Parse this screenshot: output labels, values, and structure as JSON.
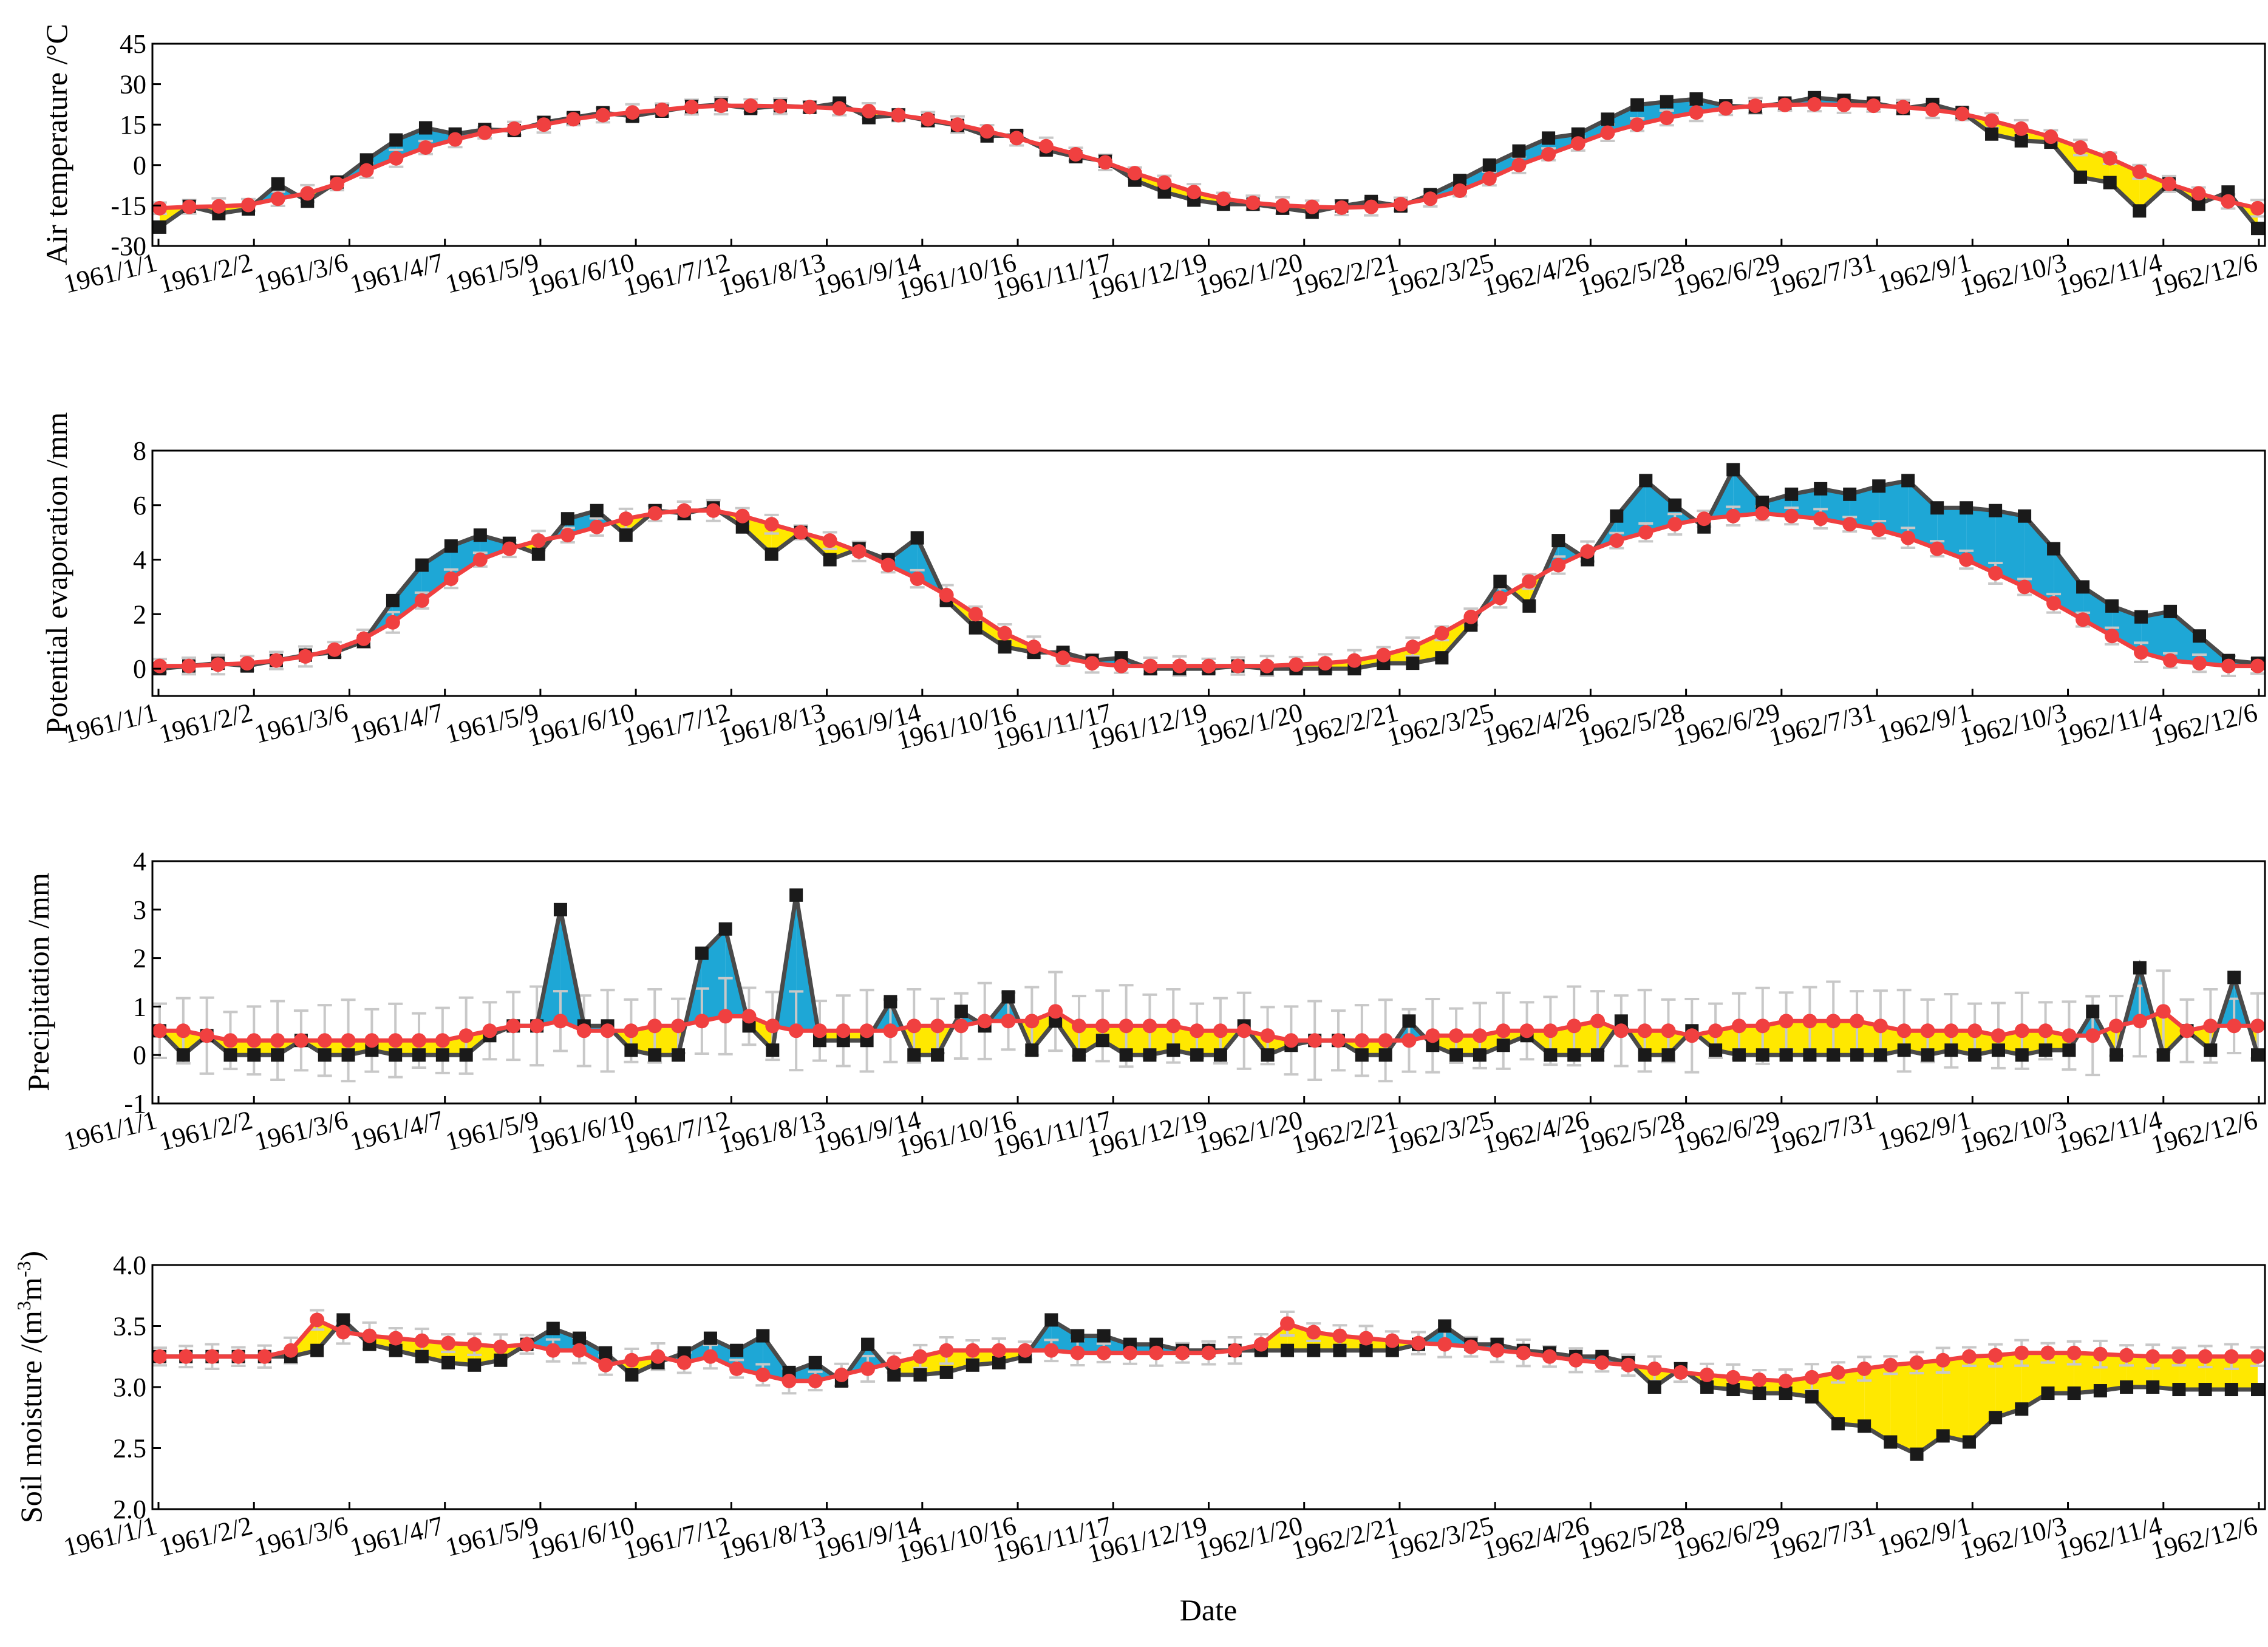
{
  "chart_data": [
    {
      "type": "line",
      "ylabel": "Air temperature /°C",
      "ylim": [
        -30,
        45
      ],
      "yticks": [
        -30,
        -15,
        0,
        15,
        30,
        45
      ],
      "date_labels": [
        "1961/1/1",
        "1961/2/2",
        "1961/3/6",
        "1961/4/7",
        "1961/5/9",
        "1961/6/10",
        "1961/7/12",
        "1961/8/13",
        "1961/9/14",
        "1961/10/16",
        "1961/11/17",
        "1961/12/19",
        "1962/1/20",
        "1962/2/21",
        "1962/3/25",
        "1962/4/26",
        "1962/5/28",
        "1962/6/29",
        "1962/7/31",
        "1962/9/1",
        "1962/10/3",
        "1962/11/4",
        "1962/12/6"
      ],
      "series": [
        {
          "values": [
            -23.0,
            -15.3,
            -18.0,
            -16.3,
            -7.0,
            -13.4,
            -6.3,
            1.9,
            9.3,
            13.8,
            11.5,
            13.2,
            12.8,
            15.8,
            17.6,
            19.4,
            18.1,
            20.0,
            21.7,
            22.4,
            21.0,
            22.0,
            21.4,
            23.0,
            17.6,
            18.6,
            16.5,
            14.7,
            10.8,
            11.0,
            5.6,
            3.1,
            1.4,
            -5.6,
            -10.0,
            -13.0,
            -14.5,
            -14.5,
            -16.0,
            -17.5,
            -15.2,
            -13.5,
            -15.2,
            -11.0,
            -5.7,
            0.0,
            5.2,
            10.0,
            11.5,
            17.0,
            22.3,
            23.5,
            24.5,
            22.0,
            21.5,
            23.0,
            25.0,
            24.0,
            23.0,
            21.0,
            22.5,
            19.5,
            11.5,
            9.0,
            8.5,
            -4.5,
            -6.5,
            -17.0,
            -7.0,
            -14.5,
            -10.0,
            -23.5
          ]
        },
        {
          "values": [
            -16.0,
            -15.5,
            -15.3,
            -14.8,
            -12.5,
            -10.5,
            -7.0,
            -2.0,
            2.5,
            6.5,
            9.5,
            12.0,
            13.5,
            15.0,
            17.0,
            18.5,
            19.5,
            20.5,
            21.5,
            22.0,
            22.0,
            21.8,
            21.5,
            21.0,
            20.0,
            18.5,
            17.0,
            15.0,
            12.5,
            10.0,
            7.0,
            4.0,
            1.0,
            -3.0,
            -6.5,
            -10.0,
            -12.5,
            -14.0,
            -15.0,
            -15.5,
            -15.8,
            -15.5,
            -14.5,
            -12.5,
            -9.5,
            -5.0,
            0.0,
            4.0,
            8.0,
            12.0,
            15.0,
            17.5,
            19.5,
            21.0,
            22.0,
            22.3,
            22.5,
            22.3,
            22.0,
            21.5,
            20.5,
            19.0,
            16.5,
            13.5,
            10.5,
            6.5,
            2.5,
            -2.5,
            -7.0,
            -10.5,
            -13.5,
            -16.0
          ]
        }
      ]
    },
    {
      "type": "line",
      "ylabel": "Potential evaporation /mm",
      "ylim": [
        -1,
        8
      ],
      "yticks": [
        0,
        2,
        4,
        6,
        8
      ],
      "date_labels": [
        "1961/1/1",
        "1961/2/2",
        "1961/3/6",
        "1961/4/7",
        "1961/5/9",
        "1961/6/10",
        "1961/7/12",
        "1961/8/13",
        "1961/9/14",
        "1961/10/16",
        "1961/11/17",
        "1961/12/19",
        "1962/1/20",
        "1962/2/21",
        "1962/3/25",
        "1962/4/26",
        "1962/5/28",
        "1962/6/29",
        "1962/7/31",
        "1962/9/1",
        "1962/10/3",
        "1962/11/4",
        "1962/12/6"
      ],
      "series": [
        {
          "values": [
            0.0,
            0.1,
            0.2,
            0.1,
            0.3,
            0.5,
            0.6,
            1.0,
            2.5,
            3.8,
            4.5,
            4.9,
            4.6,
            4.2,
            5.5,
            5.8,
            4.9,
            5.8,
            5.7,
            5.9,
            5.2,
            4.2,
            5.0,
            4.0,
            4.4,
            4.0,
            4.8,
            2.5,
            1.5,
            0.8,
            0.6,
            0.6,
            0.3,
            0.4,
            0.0,
            0.0,
            0.0,
            0.1,
            0.0,
            0.0,
            0.0,
            0.0,
            0.2,
            0.2,
            0.4,
            1.6,
            3.2,
            2.3,
            4.7,
            4.0,
            5.6,
            6.9,
            6.0,
            5.2,
            7.3,
            6.1,
            6.4,
            6.6,
            6.4,
            6.7,
            6.9,
            5.9,
            5.9,
            5.8,
            5.6,
            4.4,
            3.0,
            2.3,
            1.9,
            2.1,
            1.2,
            0.3,
            0.2
          ]
        },
        {
          "values": [
            0.1,
            0.1,
            0.15,
            0.2,
            0.3,
            0.45,
            0.7,
            1.1,
            1.7,
            2.5,
            3.3,
            4.0,
            4.4,
            4.7,
            4.9,
            5.2,
            5.5,
            5.7,
            5.8,
            5.8,
            5.6,
            5.3,
            5.0,
            4.7,
            4.3,
            3.8,
            3.3,
            2.7,
            2.0,
            1.3,
            0.8,
            0.4,
            0.2,
            0.1,
            0.1,
            0.1,
            0.1,
            0.1,
            0.1,
            0.15,
            0.2,
            0.3,
            0.5,
            0.8,
            1.3,
            1.9,
            2.6,
            3.2,
            3.8,
            4.3,
            4.7,
            5.0,
            5.3,
            5.5,
            5.6,
            5.7,
            5.6,
            5.5,
            5.3,
            5.1,
            4.8,
            4.4,
            4.0,
            3.5,
            3.0,
            2.4,
            1.8,
            1.2,
            0.6,
            0.3,
            0.2,
            0.1,
            0.1
          ]
        }
      ]
    },
    {
      "type": "line",
      "ylabel": "Precipitation /mm",
      "ylim": [
        -1,
        4
      ],
      "yticks": [
        -1,
        0,
        1,
        2,
        3,
        4
      ],
      "date_labels": [
        "1961/1/1",
        "1961/2/2",
        "1961/3/6",
        "1961/4/7",
        "1961/5/9",
        "1961/6/10",
        "1961/7/12",
        "1961/8/13",
        "1961/9/14",
        "1961/10/16",
        "1961/11/17",
        "1961/12/19",
        "1962/1/20",
        "1962/2/21",
        "1962/3/25",
        "1962/4/26",
        "1962/5/28",
        "1962/6/29",
        "1962/7/31",
        "1962/9/1",
        "1962/10/3",
        "1962/11/4",
        "1962/12/6"
      ],
      "series": [
        {
          "values": [
            0.5,
            0.0,
            0.4,
            0.0,
            0.0,
            0.0,
            0.3,
            0.0,
            0.0,
            0.1,
            0.0,
            0.0,
            0.0,
            0.0,
            0.4,
            0.6,
            0.6,
            3.0,
            0.6,
            0.6,
            0.1,
            0.0,
            0.0,
            2.1,
            2.6,
            0.6,
            0.1,
            3.3,
            0.3,
            0.3,
            0.3,
            1.1,
            0.0,
            0.0,
            0.9,
            0.6,
            1.2,
            0.1,
            0.7,
            0.0,
            0.3,
            0.0,
            0.0,
            0.1,
            0.0,
            0.0,
            0.6,
            0.0,
            0.2,
            0.3,
            0.3,
            0.0,
            0.0,
            0.7,
            0.2,
            0.0,
            0.0,
            0.2,
            0.4,
            0.0,
            0.0,
            0.0,
            0.7,
            0.0,
            0.0,
            0.5,
            0.1,
            0.0,
            0.0,
            0.0,
            0.0,
            0.0,
            0.0,
            0.0,
            0.1,
            0.0,
            0.1,
            0.0,
            0.1,
            0.0,
            0.1,
            0.1,
            0.9,
            0.0,
            1.8,
            0.0,
            0.5,
            0.1,
            1.6,
            0.0
          ]
        },
        {
          "values": [
            0.5,
            0.5,
            0.4,
            0.3,
            0.3,
            0.3,
            0.3,
            0.3,
            0.3,
            0.3,
            0.3,
            0.3,
            0.3,
            0.4,
            0.5,
            0.6,
            0.6,
            0.7,
            0.5,
            0.5,
            0.5,
            0.6,
            0.6,
            0.7,
            0.8,
            0.8,
            0.6,
            0.5,
            0.5,
            0.5,
            0.5,
            0.5,
            0.6,
            0.6,
            0.6,
            0.7,
            0.7,
            0.7,
            0.9,
            0.6,
            0.6,
            0.6,
            0.6,
            0.6,
            0.5,
            0.5,
            0.5,
            0.4,
            0.3,
            0.3,
            0.3,
            0.3,
            0.3,
            0.3,
            0.4,
            0.4,
            0.4,
            0.5,
            0.5,
            0.5,
            0.6,
            0.7,
            0.5,
            0.5,
            0.5,
            0.4,
            0.5,
            0.6,
            0.6,
            0.7,
            0.7,
            0.7,
            0.7,
            0.6,
            0.5,
            0.5,
            0.5,
            0.5,
            0.4,
            0.5,
            0.5,
            0.4,
            0.4,
            0.6,
            0.7,
            0.9,
            0.5,
            0.6,
            0.6,
            0.6
          ]
        }
      ]
    },
    {
      "type": "line",
      "ylabel": "Soil moisture /(m3m-3)",
      "ylim": [
        2.0,
        4.0
      ],
      "yticks": [
        2.0,
        2.5,
        3.0,
        3.5,
        4.0
      ],
      "date_labels": [
        "1961/1/1",
        "1961/2/2",
        "1961/3/6",
        "1961/4/7",
        "1961/5/9",
        "1961/6/10",
        "1961/7/12",
        "1961/8/13",
        "1961/9/14",
        "1961/10/16",
        "1961/11/17",
        "1961/12/19",
        "1962/1/20",
        "1962/2/21",
        "1962/3/25",
        "1962/4/26",
        "1962/5/28",
        "1962/6/29",
        "1962/7/31",
        "1962/9/1",
        "1962/10/3",
        "1962/11/4",
        "1962/12/6"
      ],
      "series": [
        {
          "values": [
            3.25,
            3.25,
            3.25,
            3.25,
            3.25,
            3.25,
            3.3,
            3.55,
            3.35,
            3.3,
            3.25,
            3.2,
            3.18,
            3.22,
            3.35,
            3.48,
            3.4,
            3.28,
            3.1,
            3.2,
            3.28,
            3.4,
            3.3,
            3.42,
            3.12,
            3.2,
            3.05,
            3.35,
            3.1,
            3.1,
            3.12,
            3.18,
            3.2,
            3.25,
            3.55,
            3.42,
            3.42,
            3.35,
            3.35,
            3.3,
            3.3,
            3.3,
            3.3,
            3.3,
            3.3,
            3.3,
            3.3,
            3.3,
            3.35,
            3.5,
            3.35,
            3.35,
            3.3,
            3.28,
            3.25,
            3.25,
            3.2,
            3.0,
            3.15,
            3.0,
            2.98,
            2.95,
            2.95,
            2.92,
            2.7,
            2.68,
            2.55,
            2.45,
            2.6,
            2.55,
            2.75,
            2.82,
            2.95,
            2.95,
            2.97,
            3.0,
            3.0,
            2.98,
            2.98,
            2.98,
            2.98
          ]
        },
        {
          "values": [
            3.25,
            3.25,
            3.25,
            3.25,
            3.25,
            3.3,
            3.55,
            3.45,
            3.42,
            3.4,
            3.38,
            3.36,
            3.35,
            3.33,
            3.35,
            3.3,
            3.3,
            3.18,
            3.22,
            3.25,
            3.2,
            3.25,
            3.15,
            3.1,
            3.05,
            3.05,
            3.1,
            3.15,
            3.2,
            3.25,
            3.3,
            3.3,
            3.3,
            3.3,
            3.3,
            3.28,
            3.28,
            3.28,
            3.28,
            3.28,
            3.28,
            3.3,
            3.35,
            3.52,
            3.45,
            3.42,
            3.4,
            3.38,
            3.36,
            3.35,
            3.33,
            3.3,
            3.28,
            3.25,
            3.22,
            3.2,
            3.18,
            3.15,
            3.12,
            3.1,
            3.08,
            3.06,
            3.05,
            3.08,
            3.12,
            3.15,
            3.18,
            3.2,
            3.22,
            3.25,
            3.26,
            3.28,
            3.28,
            3.28,
            3.27,
            3.26,
            3.25,
            3.25,
            3.25,
            3.25,
            3.25
          ]
        }
      ]
    }
  ],
  "xlabel": "Date",
  "colors": {
    "observed": "#4a4a4a",
    "observed_marker": "#1a1a1a",
    "simulated": "#f04040",
    "obs_above_sim": "#1ea7d6",
    "sim_above_obs": "#ffe800",
    "error_bar": "#c8c8c8"
  }
}
